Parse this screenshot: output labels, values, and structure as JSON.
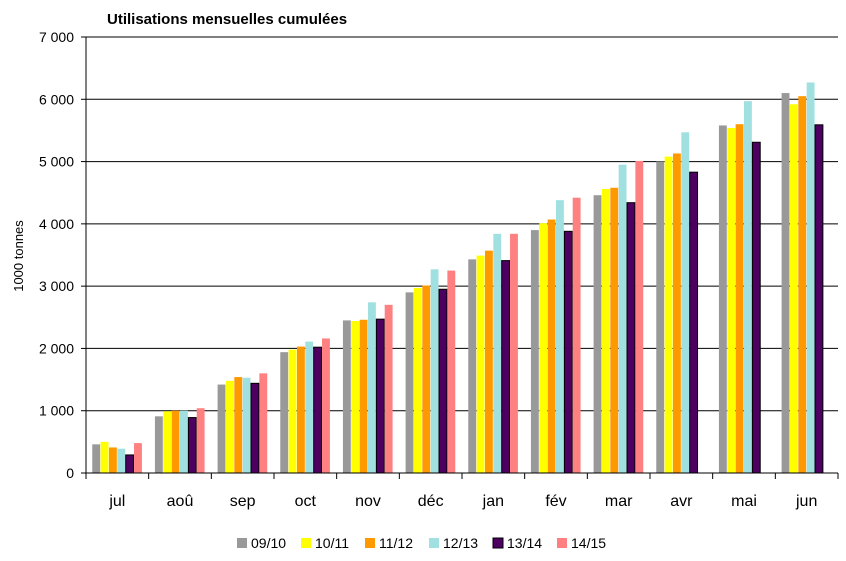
{
  "chart_data": {
    "type": "bar",
    "title": "Utilisations mensuelles cumulées",
    "xlabel": "",
    "ylabel": "1000 tonnes",
    "ylim": [
      0,
      7000
    ],
    "yticks": [
      0,
      1000,
      2000,
      3000,
      4000,
      5000,
      6000,
      7000
    ],
    "ytick_labels": [
      "0",
      "1 000",
      "2 000",
      "3 000",
      "4 000",
      "5 000",
      "6 000",
      "7 000"
    ],
    "grid": true,
    "legend_position": "bottom",
    "categories": [
      "jul",
      "aoû",
      "sep",
      "oct",
      "nov",
      "déc",
      "jan",
      "fév",
      "mar",
      "avr",
      "mai",
      "jun"
    ],
    "series": [
      {
        "name": "09/10",
        "color": "#999999",
        "values": [
          460,
          910,
          1420,
          1940,
          2450,
          2900,
          3430,
          3900,
          4460,
          5000,
          5580,
          6100
        ]
      },
      {
        "name": "10/11",
        "color": "#ffff00",
        "values": [
          500,
          990,
          1480,
          1980,
          2440,
          2970,
          3490,
          4010,
          4560,
          5080,
          5540,
          5920
        ]
      },
      {
        "name": "11/12",
        "color": "#ff9900",
        "values": [
          410,
          1000,
          1540,
          2030,
          2460,
          3010,
          3570,
          4070,
          4580,
          5130,
          5600,
          6050
        ]
      },
      {
        "name": "12/13",
        "color": "#a0e0e0",
        "values": [
          390,
          1000,
          1530,
          2110,
          2740,
          3270,
          3840,
          4380,
          4950,
          5470,
          5970,
          6270
        ]
      },
      {
        "name": "13/14",
        "color": "#4d0060",
        "values": [
          290,
          890,
          1440,
          2020,
          2470,
          2950,
          3410,
          3880,
          4340,
          4830,
          5310,
          5590
        ]
      },
      {
        "name": "14/15",
        "color": "#ff8080",
        "values": [
          480,
          1040,
          1600,
          2160,
          2700,
          3250,
          3840,
          4420,
          5010,
          null,
          null,
          null
        ]
      }
    ]
  }
}
